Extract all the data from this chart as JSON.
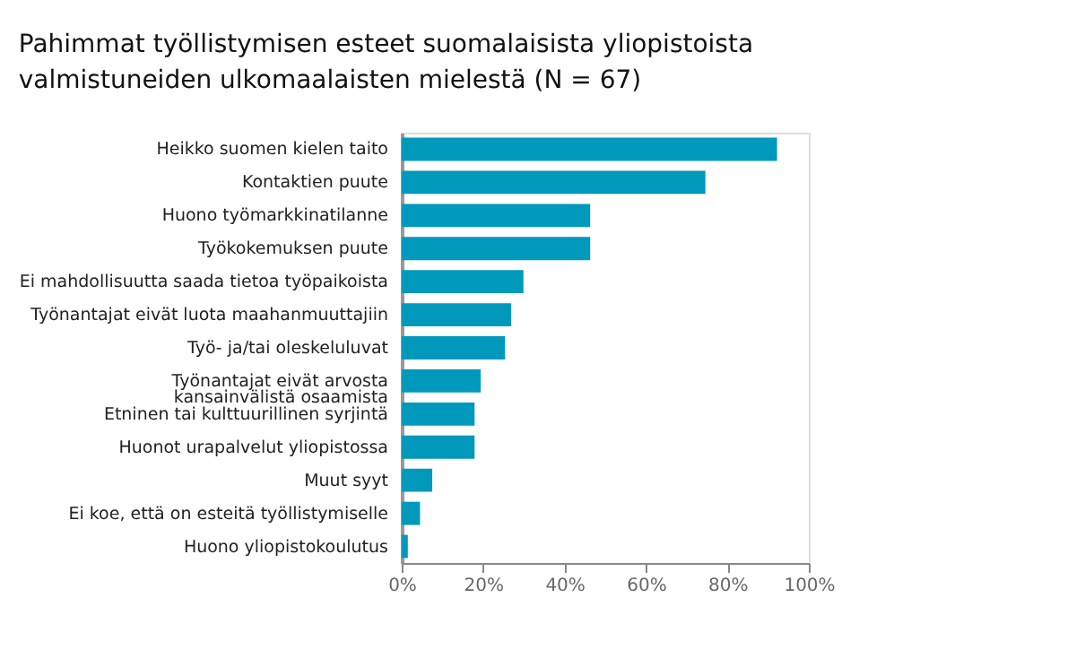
{
  "chart_data": {
    "type": "bar",
    "orientation": "horizontal",
    "title": "Pahimmat työllistymisen esteet suomalaisista yliopistoista\nvalmistuneiden ulkomaalaisten mielestä (N = 67)",
    "categories": [
      "Heikko suomen kielen taito",
      "Kontaktien puute",
      "Huono työmarkkinatilanne",
      "Työkokemuksen puute",
      "Ei mahdollisuutta saada tietoa työpaikoista",
      "Työnantajat eivät luota maahanmuuttajiin",
      "Työ- ja/tai oleskeluluvat",
      "Työnantajat eivät arvosta\nkansainvälistä osaamista",
      "Etninen tai kulttuurillinen syrjintä",
      "Huonot urapalvelut yliopistossa",
      "Muut syyt",
      "Ei koe, että on esteitä työllistymiselle",
      "Huono yliopistokoulutus"
    ],
    "values": [
      92.2,
      74.6,
      46.3,
      46.3,
      29.9,
      26.9,
      25.4,
      19.4,
      17.9,
      17.9,
      7.5,
      4.5,
      1.5
    ],
    "color": "#0098bb",
    "xlim": [
      0,
      100
    ],
    "xticks": [
      {
        "value": 0,
        "label": "0%"
      },
      {
        "value": 20,
        "label": "20%"
      },
      {
        "value": 40,
        "label": "40%"
      },
      {
        "value": 60,
        "label": "60%"
      },
      {
        "value": 80,
        "label": "80%"
      },
      {
        "value": 100,
        "label": "100%"
      }
    ],
    "grid": false
  }
}
